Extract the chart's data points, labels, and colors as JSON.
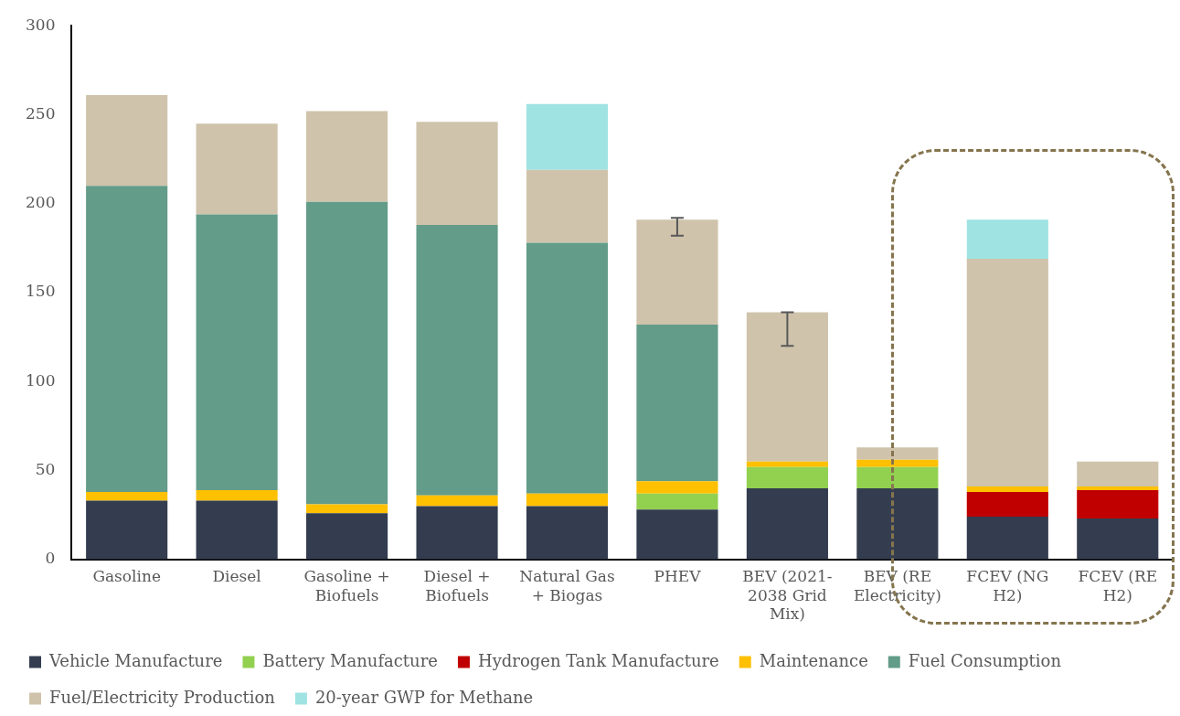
{
  "chart_data": {
    "type": "bar",
    "stacked": true,
    "categories": [
      "Gasoline",
      "Diesel",
      "Gasoline + Biofuels",
      "Diesel + Biofuels",
      "Natural Gas + Biogas",
      "PHEV",
      "BEV (2021-2038 Grid Mix)",
      "BEV (RE Electricity)",
      "FCEV (NG H2)",
      "FCEV (RE H2)"
    ],
    "series": [
      {
        "name": "Vehicle Manufacture",
        "color": "#333d4f",
        "values": [
          33,
          33,
          26,
          30,
          30,
          28,
          40,
          40,
          24,
          23
        ]
      },
      {
        "name": "Battery Manufacture",
        "color": "#92d050",
        "values": [
          null,
          null,
          null,
          null,
          null,
          9,
          12,
          12,
          null,
          null
        ]
      },
      {
        "name": "Hydrogen Tank Manufacture",
        "color": "#c00000",
        "values": [
          null,
          null,
          null,
          null,
          null,
          null,
          null,
          null,
          14,
          16
        ]
      },
      {
        "name": "Maintenance",
        "color": "#ffc000",
        "values": [
          5,
          6,
          5,
          6,
          7,
          7,
          3,
          4,
          3,
          2
        ]
      },
      {
        "name": "Fuel Consumption",
        "color": "#639c88",
        "values": [
          172,
          155,
          170,
          152,
          141,
          88,
          null,
          null,
          null,
          null
        ]
      },
      {
        "name": "Fuel/Electricity Production",
        "color": "#cfc3ab",
        "values": [
          51,
          51,
          51,
          58,
          41,
          59,
          84,
          7,
          128,
          14
        ],
        "errors": [
          null,
          null,
          null,
          null,
          null,
          [
            182,
            192
          ],
          [
            120,
            139
          ],
          null,
          null,
          null
        ]
      },
      {
        "name": "20-year GWP for Methane",
        "color": "#9fe3e3",
        "values": [
          null,
          null,
          null,
          null,
          37,
          null,
          null,
          null,
          22,
          null
        ]
      }
    ],
    "ylim": [
      0,
      300
    ],
    "yticks": [
      0,
      50,
      100,
      150,
      200,
      250,
      300
    ],
    "grid": false,
    "legend": "bottom"
  }
}
